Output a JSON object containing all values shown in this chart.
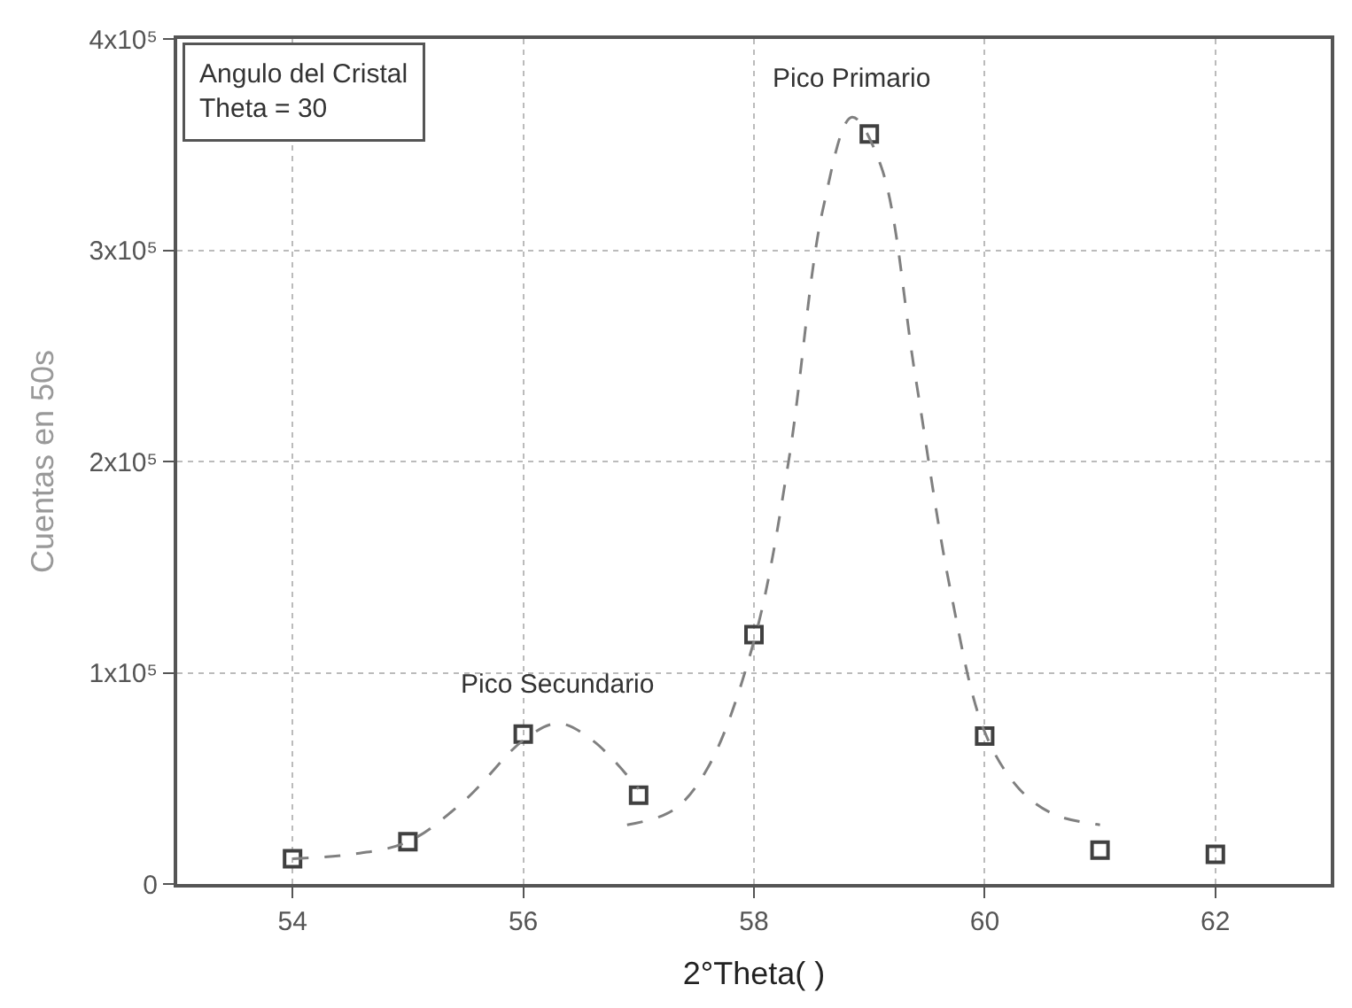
{
  "chart_data": {
    "type": "scatter",
    "xlabel": "2°Theta( )",
    "ylabel": "Cuentas en 50s",
    "series": [
      {
        "color": "#404040",
        "marker": "square",
        "x": [
          54,
          55,
          56,
          57,
          58,
          59,
          60,
          61,
          62
        ],
        "values": [
          12000,
          20000,
          71000,
          42000,
          118000,
          355000,
          70000,
          16000,
          14000
        ]
      },
      {
        "type": "line",
        "color": "#808080",
        "line_style": "dashed",
        "x": [
          54,
          54.5,
          55,
          55.5,
          56,
          56.3,
          56.6,
          57
        ],
        "values": [
          12000,
          14000,
          20000,
          40000,
          68000,
          76000,
          68000,
          45000
        ]
      },
      {
        "type": "line",
        "color": "#808080",
        "line_style": "dashed",
        "x": [
          56.9,
          57.3,
          57.6,
          58,
          58.3,
          58.6,
          58.85,
          59.1,
          59.4,
          59.7,
          60,
          60.3,
          60.6,
          61
        ],
        "values": [
          28000,
          35000,
          55000,
          115000,
          200000,
          320000,
          363000,
          340000,
          240000,
          140000,
          72000,
          45000,
          33000,
          28000
        ]
      }
    ],
    "xlim": [
      53,
      63
    ],
    "xticks": [
      54,
      56,
      58,
      60,
      62
    ],
    "ylim": [
      0,
      400000
    ],
    "yticks": [
      0,
      {
        "value": 100000,
        "label": "1x10⁵"
      },
      {
        "value": 200000,
        "label": "2x10⁵"
      },
      {
        "value": 300000,
        "label": "3x10⁵"
      },
      {
        "value": 400000,
        "label": "4x10⁵"
      }
    ],
    "grid": true,
    "annotations": [
      {
        "text": "Pico Primario",
        "x": 58.85,
        "y": 363000
      },
      {
        "text": "Pico Secundario",
        "x": 56.3,
        "y": 76000
      },
      "Angulo del Cristal\nTheta = 30"
    ]
  }
}
